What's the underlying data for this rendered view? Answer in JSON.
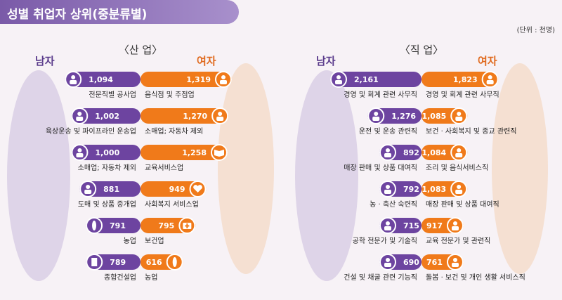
{
  "header": {
    "title": "성별 취업자 상위(중분류별)"
  },
  "unit_label": "(단위 : 천명)",
  "colors": {
    "male": "#6d44a0",
    "female": "#f07a1a",
    "male_light": "#cfc0e6",
    "female_light": "#f7c79e"
  },
  "chart_data": [
    {
      "type": "bar",
      "title": "〈산 업〉",
      "male_label": "남자",
      "female_label": "여자",
      "male": {
        "categories": [
          "전문직별 공사업",
          "육상운송 및 파이프라인 운송업",
          "소매업; 자동차 제외",
          "도매 및 상품 중개업",
          "농업",
          "종합건설업"
        ],
        "values": [
          1094,
          1002,
          1000,
          881,
          791,
          789
        ],
        "icons": [
          "excavator-icon",
          "truck-icon",
          "shop-icon",
          "handshake-icon",
          "wheat-icon",
          "building-icon"
        ]
      },
      "female": {
        "categories": [
          "음식점 및 주점업",
          "소매업; 자동차 제외",
          "교육서비스업",
          "사회복지 서비스업",
          "보건업",
          "농업"
        ],
        "values": [
          1319,
          1270,
          1258,
          949,
          795,
          616
        ],
        "icons": [
          "dish-icon",
          "shop-icon",
          "book-icon",
          "heart-hands-icon",
          "medical-kit-icon",
          "wheat-icon"
        ]
      }
    },
    {
      "type": "bar",
      "title": "〈직 업〉",
      "male_label": "남자",
      "female_label": "여자",
      "male": {
        "categories": [
          "경영 및 회계 관련 사무직",
          "운전 및 운송 관련직",
          "매장 판매 및 상품 대여직",
          "농 · 축산 숙련직",
          "공학 전문가 및 기술직",
          "건설 및 채굴 관련 기능직"
        ],
        "values": [
          2161,
          1276,
          892,
          792,
          715,
          690
        ],
        "icons": [
          "office-worker-icon",
          "driver-icon",
          "cashier-icon",
          "farmer-icon",
          "engineer-icon",
          "construction-worker-icon"
        ]
      },
      "female": {
        "categories": [
          "경영 및 회계 관련 사무직",
          "보건 · 사회복지 및 종교 관련직",
          "조리 및 음식서비스직",
          "매장 판매 및 상품 대여직",
          "교육 전문가 및 관련직",
          "돌봄 · 보건 및 개인 생활 서비스직"
        ],
        "values": [
          1823,
          1085,
          1084,
          1083,
          917,
          761
        ],
        "icons": [
          "office-worker-icon",
          "nurse-icon",
          "chef-icon",
          "cashier-icon",
          "teacher-icon",
          "caregiver-icon"
        ]
      }
    }
  ]
}
